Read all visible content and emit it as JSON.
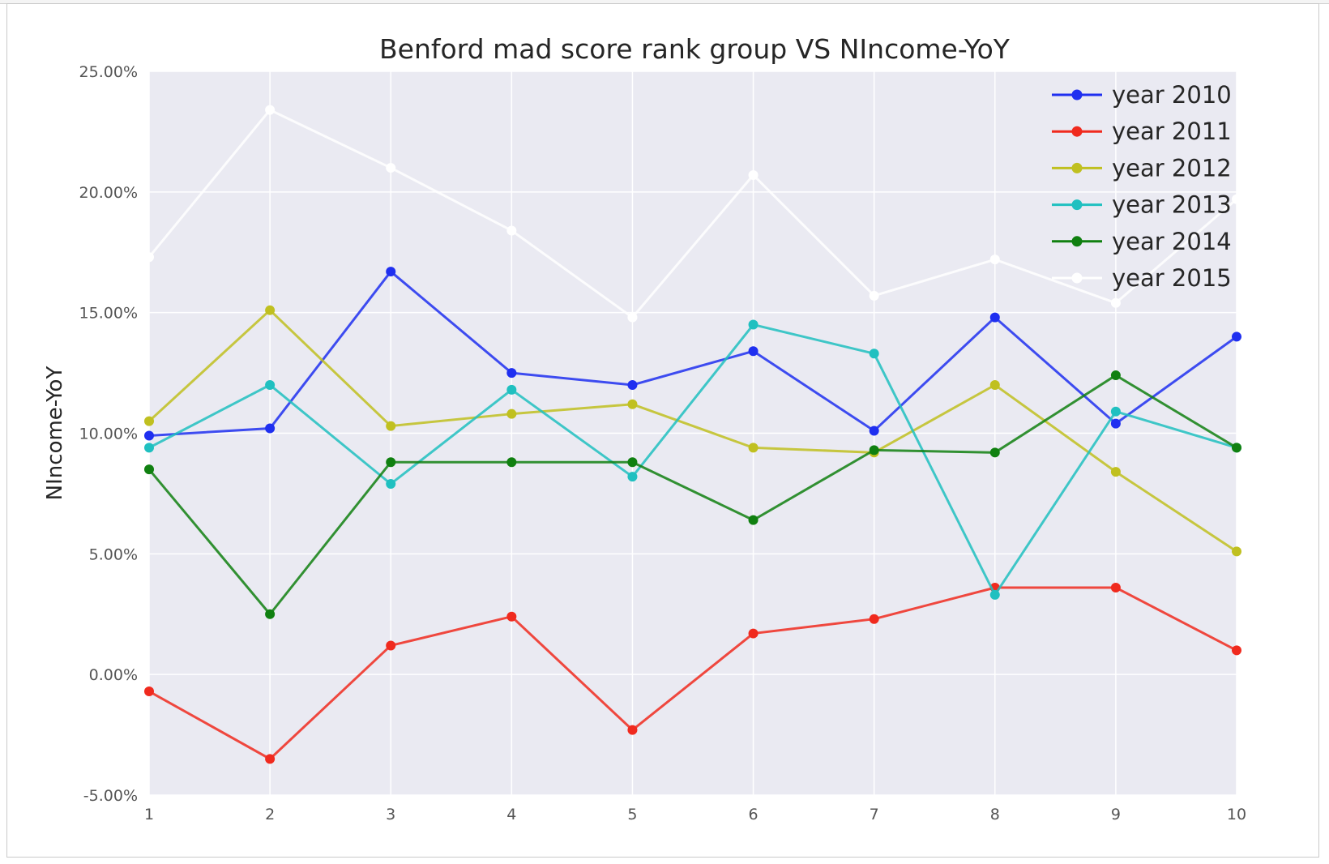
{
  "chart_data": {
    "type": "line",
    "title": "Benford mad score rank group VS NIncome-YoY",
    "xlabel": "",
    "ylabel": "NIncome-YoY",
    "x": [
      1,
      2,
      3,
      4,
      5,
      6,
      7,
      8,
      9,
      10
    ],
    "x_tick_labels": [
      "1",
      "2",
      "3",
      "4",
      "5",
      "6",
      "7",
      "8",
      "9",
      "10"
    ],
    "xlim": [
      1,
      10
    ],
    "ylim": [
      -5,
      25
    ],
    "y_ticks": [
      -5,
      0,
      5,
      10,
      15,
      20,
      25
    ],
    "y_tick_labels": [
      "-5.00%",
      "0.00%",
      "5.00%",
      "10.00%",
      "15.00%",
      "20.00%",
      "25.00%"
    ],
    "grid": true,
    "legend_position": "top-right",
    "background": "#eaeaf2",
    "series": [
      {
        "name": "year 2010",
        "color": "#1f2ff0",
        "values": [
          9.9,
          10.2,
          16.7,
          12.5,
          12.0,
          13.4,
          10.1,
          14.8,
          10.4,
          14.0
        ]
      },
      {
        "name": "year 2011",
        "color": "#f02a1e",
        "values": [
          -0.7,
          -3.5,
          1.2,
          2.4,
          -2.3,
          1.7,
          2.3,
          3.6,
          3.6,
          1.0
        ]
      },
      {
        "name": "year 2012",
        "color": "#c0c020",
        "values": [
          10.5,
          15.1,
          10.3,
          10.8,
          11.2,
          9.4,
          9.2,
          12.0,
          8.4,
          5.1
        ]
      },
      {
        "name": "year 2013",
        "color": "#20c0c0",
        "values": [
          9.4,
          12.0,
          7.9,
          11.8,
          8.2,
          14.5,
          13.3,
          3.3,
          10.9,
          9.4
        ]
      },
      {
        "name": "year 2014",
        "color": "#108010",
        "values": [
          8.5,
          2.5,
          8.8,
          8.8,
          8.8,
          6.4,
          9.3,
          9.2,
          12.4,
          9.4
        ]
      },
      {
        "name": "year 2015",
        "color": "#ffffff",
        "values": [
          17.3,
          23.4,
          21.0,
          18.4,
          14.8,
          20.7,
          15.7,
          17.2,
          15.4,
          19.7
        ]
      }
    ]
  }
}
